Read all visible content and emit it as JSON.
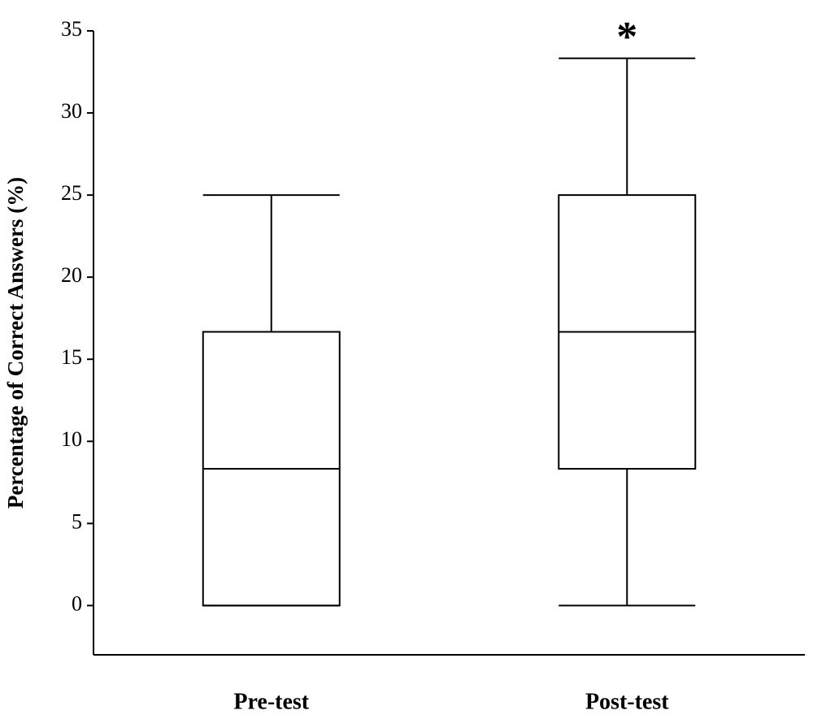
{
  "chart_data": {
    "type": "box",
    "ylabel": "Percentage of Correct Answers (%)",
    "categories": [
      "Pre-test",
      "Post-test"
    ],
    "boxes": [
      {
        "min": 0,
        "q1": 0,
        "median": 8.33,
        "q3": 16.67,
        "max": 25
      },
      {
        "min": 0,
        "q1": 8.33,
        "median": 16.67,
        "q3": 25,
        "max": 33.33
      }
    ],
    "annotations": [
      {
        "text": "*",
        "x": "Post-test",
        "y": 35
      }
    ],
    "ylim": [
      -3,
      35
    ],
    "yticks": [
      0,
      5,
      10,
      15,
      20,
      25,
      30,
      35
    ],
    "grid": false
  }
}
